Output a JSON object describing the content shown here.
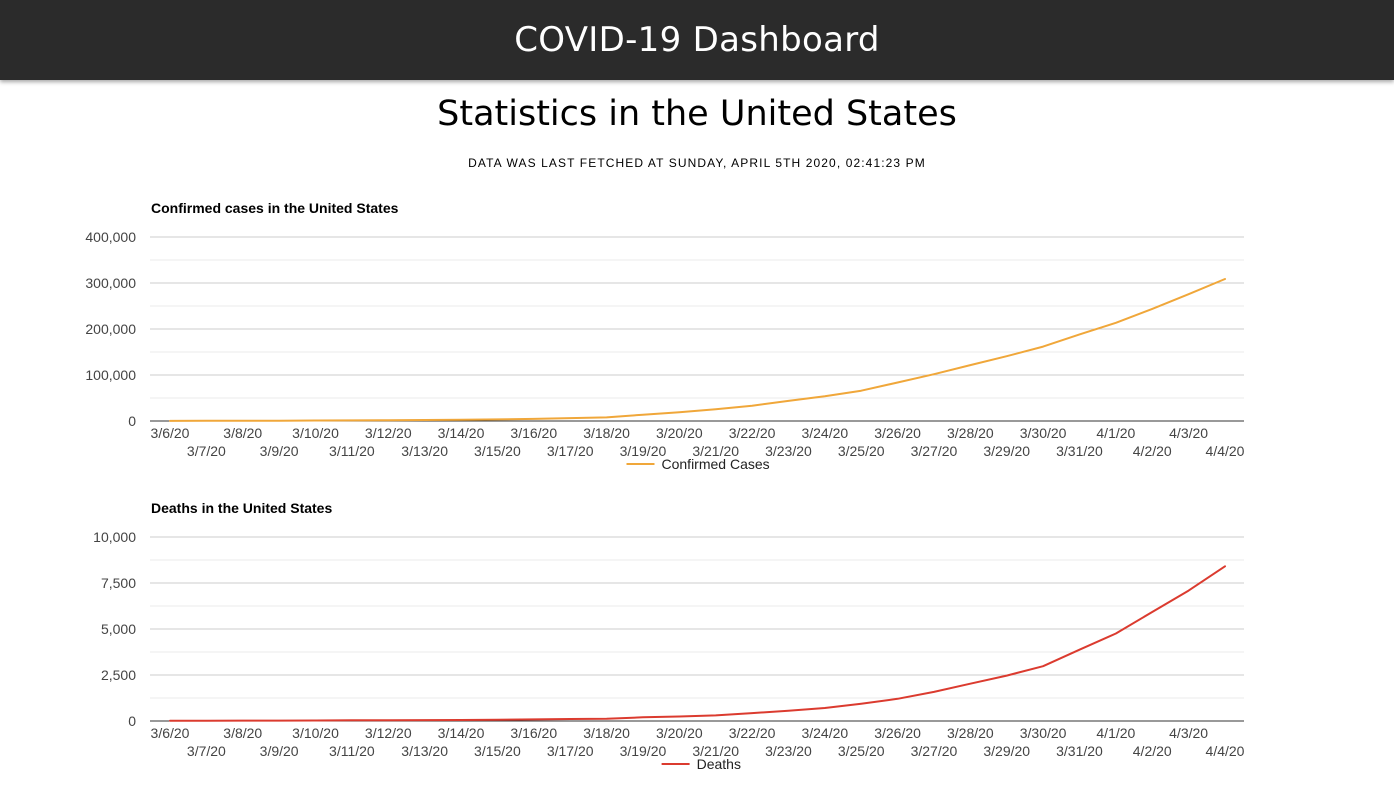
{
  "header": {
    "title": "COVID-19 Dashboard"
  },
  "page": {
    "title": "Statistics in the United States",
    "fetched": "Data was last fetched at Sunday, April 5th 2020, 02:41:23 PM"
  },
  "chart_data": [
    {
      "type": "line",
      "title": "Confirmed cases in the United States",
      "xlabel": "",
      "ylabel": "",
      "ylim": [
        0,
        400000
      ],
      "yticks": [
        "0",
        "100,000",
        "200,000",
        "300,000",
        "400,000"
      ],
      "grid": true,
      "legend_position": "bottom",
      "categories": [
        "3/6/20",
        "3/7/20",
        "3/8/20",
        "3/9/20",
        "3/10/20",
        "3/11/20",
        "3/12/20",
        "3/13/20",
        "3/14/20",
        "3/15/20",
        "3/16/20",
        "3/17/20",
        "3/18/20",
        "3/19/20",
        "3/20/20",
        "3/21/20",
        "3/22/20",
        "3/23/20",
        "3/24/20",
        "3/25/20",
        "3/26/20",
        "3/27/20",
        "3/28/20",
        "3/29/20",
        "3/30/20",
        "3/31/20",
        "4/1/20",
        "4/2/20",
        "4/3/20",
        "4/4/20"
      ],
      "series": [
        {
          "name": "Confirmed Cases",
          "color": "#f0a73a",
          "values": [
            300,
            400,
            550,
            700,
            1000,
            1300,
            1700,
            2200,
            2900,
            3500,
            4600,
            6400,
            7800,
            13700,
            19100,
            25500,
            33300,
            43800,
            53700,
            65800,
            83800,
            101700,
            121500,
            140900,
            161800,
            188200,
            213400,
            243600,
            275600,
            308800
          ]
        }
      ]
    },
    {
      "type": "line",
      "title": "Deaths in the United States",
      "xlabel": "",
      "ylabel": "",
      "ylim": [
        0,
        10000
      ],
      "yticks": [
        "0",
        "2,500",
        "5,000",
        "7,500",
        "10,000"
      ],
      "grid": true,
      "legend_position": "bottom",
      "categories": [
        "3/6/20",
        "3/7/20",
        "3/8/20",
        "3/9/20",
        "3/10/20",
        "3/11/20",
        "3/12/20",
        "3/13/20",
        "3/14/20",
        "3/15/20",
        "3/16/20",
        "3/17/20",
        "3/18/20",
        "3/19/20",
        "3/20/20",
        "3/21/20",
        "3/22/20",
        "3/23/20",
        "3/24/20",
        "3/25/20",
        "3/26/20",
        "3/27/20",
        "3/28/20",
        "3/29/20",
        "3/30/20",
        "3/31/20",
        "4/1/20",
        "4/2/20",
        "4/3/20",
        "4/4/20"
      ],
      "series": [
        {
          "name": "Deaths",
          "color": "#db3b2f",
          "values": [
            14,
            17,
            21,
            22,
            28,
            36,
            40,
            47,
            54,
            63,
            85,
            108,
            118,
            200,
            244,
            307,
            427,
            552,
            706,
            942,
            1209,
            1581,
            2026,
            2467,
            2978,
            3873,
            4757,
            5926,
            7087,
            8407
          ]
        }
      ]
    }
  ]
}
